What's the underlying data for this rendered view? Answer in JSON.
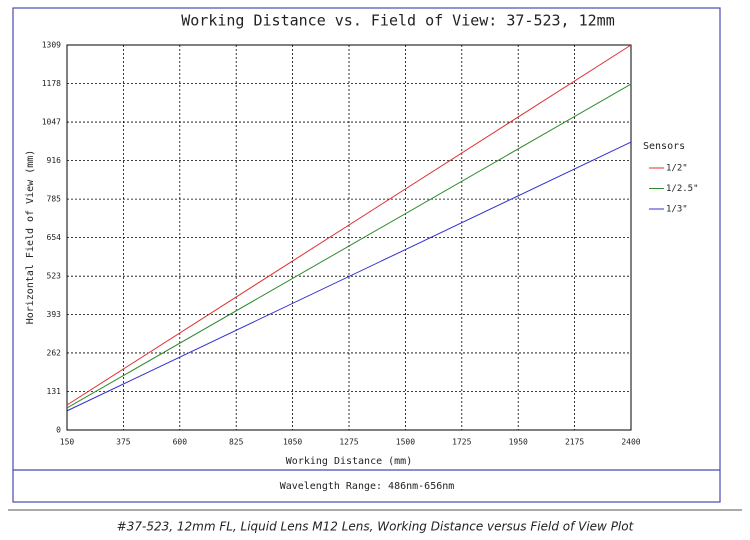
{
  "chart_data": {
    "type": "line",
    "title": "Working Distance vs. Field of View: 37-523, 12mm",
    "x_label": "Working Distance (mm)",
    "y_label": "Horizontal Field of View (mm)",
    "x": [
      150,
      2400
    ],
    "xlim": [
      150,
      2400
    ],
    "xticks": [
      150,
      375,
      600,
      825,
      1050,
      1275,
      1500,
      1725,
      1950,
      2175,
      2400
    ],
    "ylim": [
      0,
      1309
    ],
    "yticks": [
      0,
      131,
      262,
      393,
      523,
      654,
      785,
      916,
      1047,
      1178,
      1309
    ],
    "grid": true,
    "legend_title": "Sensors",
    "legend_position": "right",
    "series": [
      {
        "name": "1/2\"",
        "color": "#e03030",
        "values": [
          85,
          1309
        ]
      },
      {
        "name": "1/2.5\"",
        "color": "#2e8b2e",
        "values": [
          75,
          1176
        ]
      },
      {
        "name": "1/3\"",
        "color": "#3030d0",
        "values": [
          65,
          979
        ]
      }
    ],
    "footer": "Wavelength Range: 486nm-656nm"
  },
  "caption": "#37-523, 12mm FL, Liquid Lens M12 Lens, Working Distance versus Field of View Plot"
}
